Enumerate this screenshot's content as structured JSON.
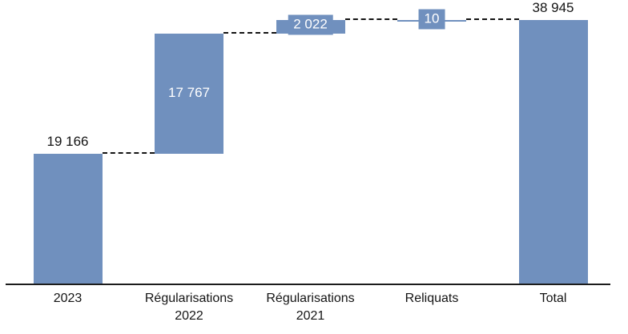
{
  "chart_data": {
    "type": "bar",
    "subtype": "waterfall",
    "title": "",
    "xlabel": "",
    "ylabel": "",
    "ylim": [
      0,
      39500
    ],
    "grid": false,
    "legend": false,
    "categories": [
      "2023",
      "Régularisations\n2022",
      "Régularisations\n2021",
      "Reliquats",
      "Total"
    ],
    "steps": [
      {
        "label": "2023",
        "value": 19166,
        "display": "19 166",
        "kind": "start",
        "label_style": "above"
      },
      {
        "label": "Regularisations 2022",
        "value": 17767,
        "display": "17 767",
        "kind": "relative",
        "label_style": "inside"
      },
      {
        "label": "Regularisations 2021",
        "value": 2022,
        "display": "2 022",
        "kind": "relative",
        "label_style": "boxed"
      },
      {
        "label": "Reliquats",
        "value": -10,
        "display": "10",
        "kind": "relative",
        "label_style": "boxed"
      },
      {
        "label": "Total",
        "value": 38945,
        "display": "38 945",
        "kind": "total",
        "label_style": "above"
      }
    ],
    "colors": {
      "bar": "#7090BE",
      "connector": "#141414",
      "axis": "#1c1c1c",
      "label_dark": "#141414",
      "label_light": "#ffffff"
    }
  }
}
